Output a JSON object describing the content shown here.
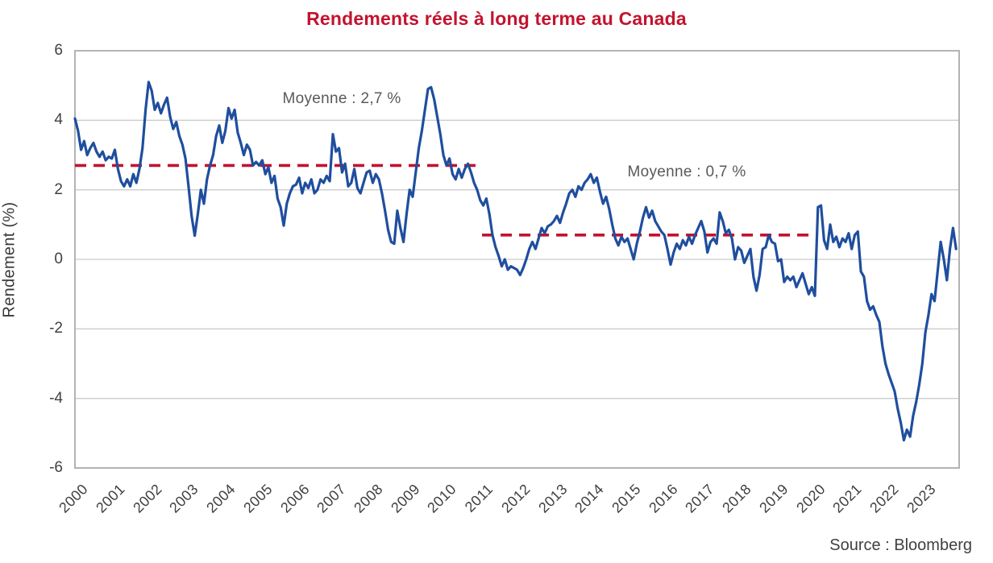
{
  "title": "Rendements réels à long terme au Canada",
  "source": "Source : Bloomberg",
  "colors": {
    "title": "#c3132e",
    "line": "#1f4e9e",
    "mean_line": "#c2122f",
    "grid": "#cccccc",
    "border": "#b3b3b3",
    "annotation_text": "#58595b"
  },
  "chart_data": {
    "type": "line",
    "title": "Rendements réels à long terme au Canada",
    "xlabel": "",
    "ylabel": "Rendement (%)",
    "ylim": [
      -6,
      6
    ],
    "yticks": [
      6,
      4,
      2,
      0,
      -2,
      -4,
      -6
    ],
    "x_range": [
      2000,
      2024
    ],
    "xticks": [
      2000,
      2001,
      2002,
      2003,
      2004,
      2005,
      2006,
      2007,
      2008,
      2009,
      2010,
      2011,
      2012,
      2013,
      2014,
      2015,
      2016,
      2017,
      2018,
      2019,
      2020,
      2021,
      2022,
      2023
    ],
    "grid": "horizontal",
    "legend": "none",
    "mean_lines": [
      {
        "label": "Moyenne : 2,7 %",
        "value": 2.7,
        "x_start": 2000.0,
        "x_end": 2011.05
      },
      {
        "label": "Moyenne : 0,7 %",
        "value": 0.7,
        "x_start": 2011.05,
        "x_end": 2020.15
      }
    ],
    "series": [
      {
        "name": "Rendement réel à long terme (Canada)",
        "frequency": "monthly",
        "start_year": 2000,
        "values_by_year": [
          [
            4.05,
            3.7,
            3.15,
            3.4,
            3.0,
            3.2,
            3.35,
            3.1,
            2.95,
            3.1,
            2.85,
            2.95
          ],
          [
            2.9,
            3.15,
            2.6,
            2.25,
            2.1,
            2.3,
            2.1,
            2.45,
            2.2,
            2.6,
            3.2,
            4.3
          ],
          [
            5.1,
            4.85,
            4.3,
            4.5,
            4.2,
            4.45,
            4.65,
            4.1,
            3.75,
            3.95,
            3.55,
            3.3
          ],
          [
            2.9,
            2.1,
            1.25,
            0.68,
            1.3,
            2.0,
            1.6,
            2.3,
            2.7,
            3.0,
            3.55,
            3.85
          ],
          [
            3.35,
            3.7,
            4.35,
            4.05,
            4.3,
            3.65,
            3.35,
            3.0,
            3.3,
            3.15,
            2.7,
            2.8
          ],
          [
            2.7,
            2.85,
            2.45,
            2.65,
            2.2,
            2.4,
            1.75,
            1.5,
            0.97,
            1.6,
            1.9,
            2.1
          ],
          [
            2.15,
            2.35,
            1.9,
            2.2,
            2.05,
            2.3,
            1.9,
            2.0,
            2.3,
            2.2,
            2.4,
            2.25
          ],
          [
            3.6,
            3.1,
            3.2,
            2.5,
            2.75,
            2.1,
            2.2,
            2.6,
            2.05,
            1.9,
            2.2,
            2.5
          ],
          [
            2.55,
            2.2,
            2.45,
            2.3,
            1.9,
            1.4,
            0.85,
            0.5,
            0.45,
            1.4,
            0.9,
            0.5
          ],
          [
            1.3,
            2.0,
            1.8,
            2.5,
            3.2,
            3.7,
            4.3,
            4.9,
            4.95,
            4.6,
            4.1,
            3.6
          ],
          [
            3.0,
            2.7,
            2.9,
            2.45,
            2.3,
            2.6,
            2.35,
            2.6,
            2.75,
            2.5,
            2.2,
            2.0
          ],
          [
            1.7,
            1.55,
            1.75,
            1.3,
            0.7,
            0.35,
            0.1,
            -0.2,
            0.0,
            -0.3,
            -0.2,
            -0.25
          ],
          [
            -0.3,
            -0.45,
            -0.25,
            0.0,
            0.3,
            0.5,
            0.3,
            0.6,
            0.9,
            0.75,
            0.95,
            1.0
          ],
          [
            1.1,
            1.25,
            1.05,
            1.35,
            1.6,
            1.9,
            2.0,
            1.8,
            2.1,
            2.0,
            2.2,
            2.3
          ],
          [
            2.45,
            2.2,
            2.35,
            1.95,
            1.6,
            1.8,
            1.45,
            1.0,
            0.6,
            0.4,
            0.65,
            0.5
          ],
          [
            0.6,
            0.3,
            0.0,
            0.45,
            0.8,
            1.2,
            1.5,
            1.2,
            1.4,
            1.1,
            0.95,
            0.8
          ],
          [
            0.7,
            0.3,
            -0.15,
            0.2,
            0.45,
            0.3,
            0.55,
            0.4,
            0.65,
            0.45,
            0.7,
            0.9
          ],
          [
            1.1,
            0.8,
            0.2,
            0.5,
            0.6,
            0.45,
            1.35,
            1.1,
            0.75,
            0.85,
            0.6,
            0.0
          ],
          [
            0.35,
            0.25,
            -0.1,
            0.1,
            0.3,
            -0.5,
            -0.9,
            -0.45,
            0.3,
            0.35,
            0.7,
            0.5
          ],
          [
            0.45,
            -0.05,
            0.0,
            -0.65,
            -0.5,
            -0.6,
            -0.5,
            -0.8,
            -0.6,
            -0.4,
            -0.7,
            -1.0
          ],
          [
            -0.8,
            -1.05,
            1.5,
            1.55,
            0.55,
            0.3,
            1.0,
            0.5,
            0.65,
            0.35,
            0.6,
            0.5
          ],
          [
            0.75,
            0.3,
            0.7,
            0.8,
            -0.35,
            -0.5,
            -1.2,
            -1.45,
            -1.35,
            -1.6,
            -1.8,
            -2.5
          ],
          [
            -3.0,
            -3.3,
            -3.55,
            -3.8,
            -4.3,
            -4.7,
            -5.2,
            -4.9,
            -5.1,
            -4.5,
            -4.1,
            -3.6
          ],
          [
            -3.0,
            -2.1,
            -1.6,
            -1.0,
            -1.2,
            -0.35,
            0.5,
            0.0,
            -0.6,
            0.3,
            0.9,
            0.3
          ]
        ]
      }
    ]
  }
}
